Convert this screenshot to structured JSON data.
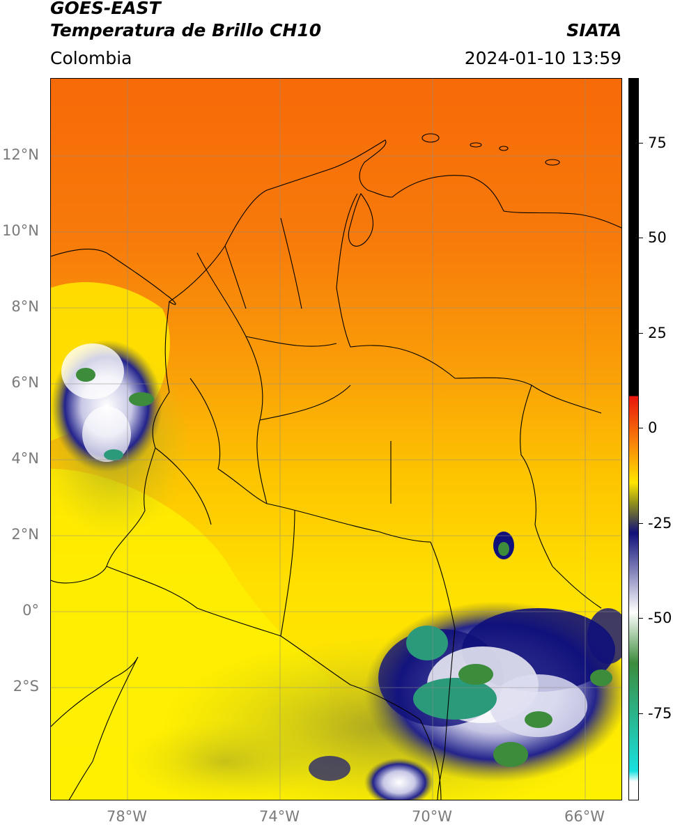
{
  "header": {
    "title_line1": "GOES-EAST",
    "title_line2": "Temperatura de Brillo CH10",
    "agency": "SIATA",
    "region": "Colombia",
    "timestamp": "2024-01-10 13:59"
  },
  "map": {
    "lat_labels": [
      "12°N",
      "10°N",
      "8°N",
      "6°N",
      "4°N",
      "2°N",
      "0°",
      "2°S"
    ],
    "lon_labels": [
      "78°W",
      "74°W",
      "70°W",
      "66°W"
    ]
  },
  "colorbar": {
    "ticks": [
      "75",
      "50",
      "25",
      "0",
      "-25",
      "-50",
      "-75"
    ],
    "colors": {
      "hot": "#000000",
      "red": "#e8140c",
      "orange": "#f77a0a",
      "yellow": "#ffe600",
      "olive": "#8c8c1e",
      "navy": "#10107a",
      "white": "#ffffff",
      "green": "#3c8c3c",
      "cyan": "#18e0e0"
    }
  }
}
